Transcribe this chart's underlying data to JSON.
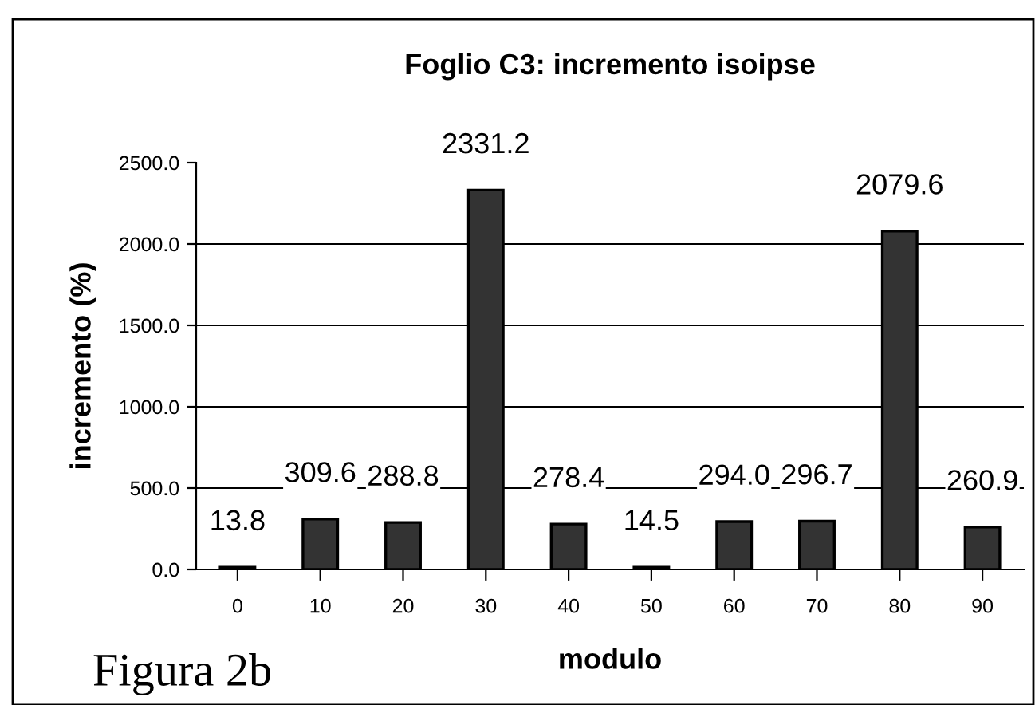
{
  "chart_data": {
    "type": "bar",
    "title": "Foglio C3: incremento isoipse",
    "xlabel": "modulo",
    "ylabel": "incremento (%)",
    "categories": [
      "0",
      "10",
      "20",
      "30",
      "40",
      "50",
      "60",
      "70",
      "80",
      "90"
    ],
    "values": [
      13.8,
      309.6,
      288.8,
      2331.2,
      278.4,
      14.5,
      294.0,
      296.7,
      2079.6,
      260.9
    ],
    "value_labels": [
      "13.8",
      "309.6",
      "288.8",
      "2331.2",
      "278.4",
      "14.5",
      "294.0",
      "296.7",
      "2079.6",
      "260.9"
    ],
    "color": "#333333",
    "ylim": [
      0,
      2500
    ],
    "yticks": [
      {
        "value": 0,
        "label": "0.0"
      },
      {
        "value": 500,
        "label": "500.0"
      },
      {
        "value": 1000,
        "label": "1000.0"
      },
      {
        "value": 1500,
        "label": "1500.0"
      },
      {
        "value": 2000,
        "label": "2000.0"
      },
      {
        "value": 2500,
        "label": "2500.0"
      }
    ],
    "grid": "y",
    "legend": false,
    "annotations": [
      "Figura 2b"
    ]
  }
}
